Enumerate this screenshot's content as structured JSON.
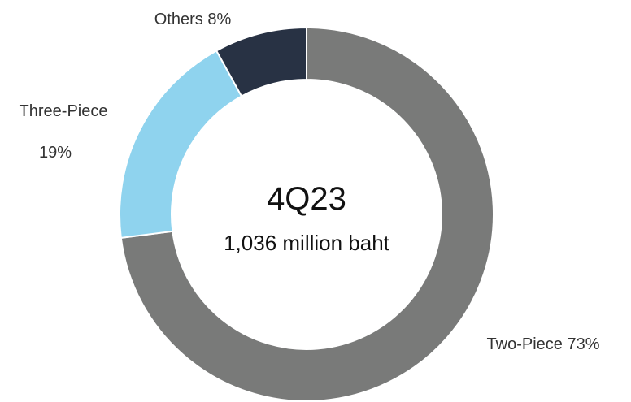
{
  "chart_data": {
    "type": "pie",
    "variant": "donut",
    "center_title": "4Q23",
    "center_subtitle": "1,036 million baht",
    "slices": [
      {
        "name": "Two-Piece",
        "value": 73,
        "label": "Two-Piece 73%",
        "color": "#797a79"
      },
      {
        "name": "Three-Piece",
        "value": 19,
        "label_line1": "Three-Piece",
        "label_line2": "19%",
        "color": "#8fd3ee"
      },
      {
        "name": "Others",
        "value": 8,
        "label": "Others 8%",
        "color": "#283244"
      }
    ]
  }
}
